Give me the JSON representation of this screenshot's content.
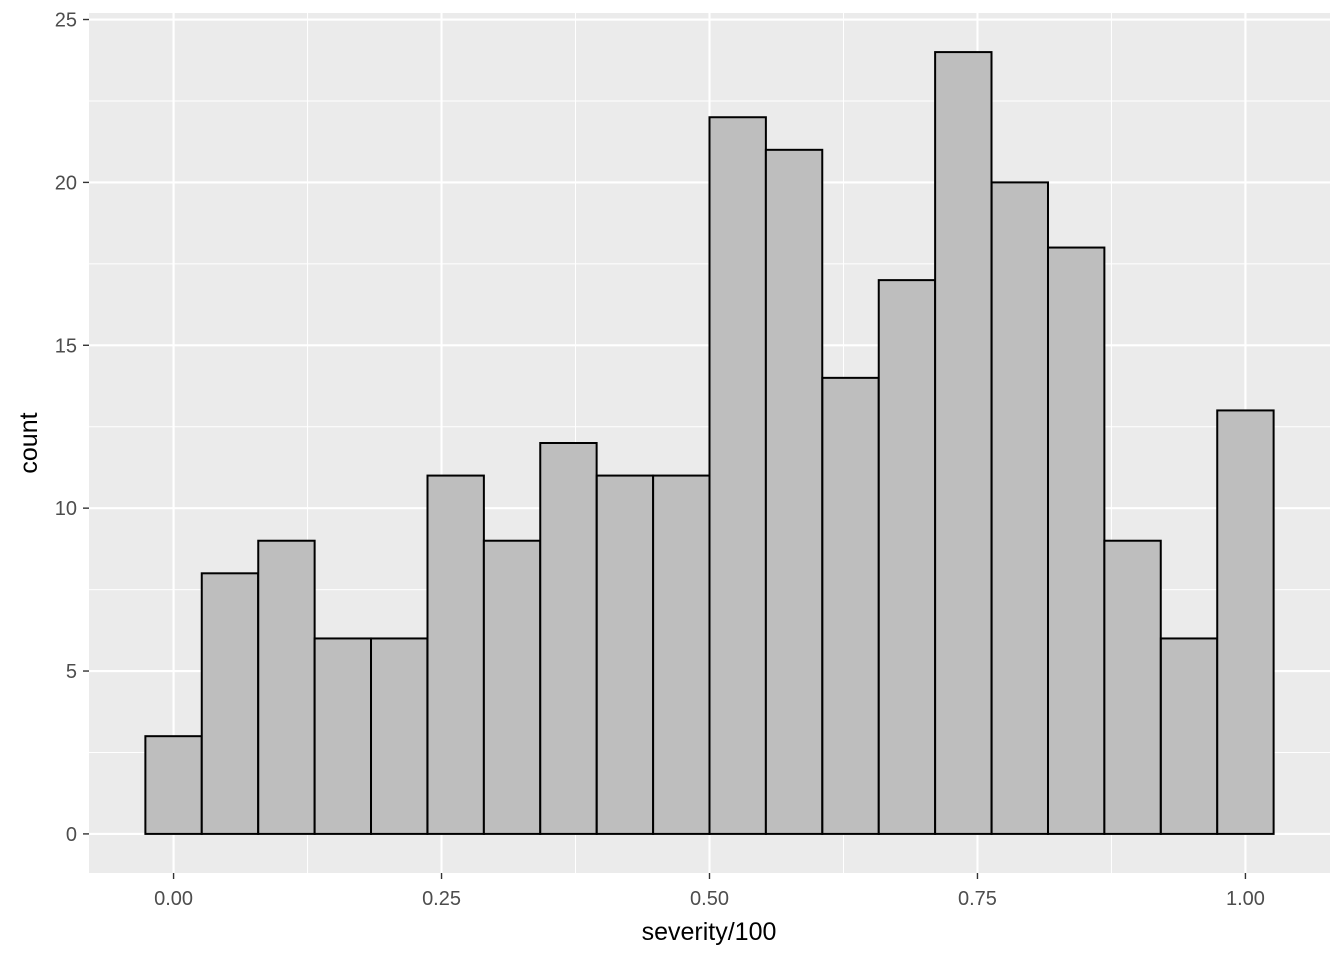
{
  "chart_data": {
    "type": "bar",
    "subtype": "histogram",
    "title": "",
    "xlabel": "severity/100",
    "ylabel": "count",
    "bin_width": 0.0526,
    "bin_centers": [
      0.0,
      0.0526,
      0.1053,
      0.1579,
      0.2105,
      0.2632,
      0.3158,
      0.3684,
      0.4211,
      0.4737,
      0.5263,
      0.5789,
      0.6316,
      0.6842,
      0.7368,
      0.7895,
      0.8421,
      0.8947,
      0.9474,
      1.0
    ],
    "values": [
      3,
      8,
      9,
      6,
      6,
      11,
      9,
      12,
      11,
      11,
      22,
      21,
      14,
      17,
      24,
      20,
      18,
      9,
      6,
      13
    ],
    "xlim": [
      -0.0789,
      1.0789
    ],
    "ylim": [
      -1.2,
      25.2
    ],
    "x_ticks": [
      0,
      0.25,
      0.5,
      0.75,
      1.0
    ],
    "x_tick_labels": [
      "0.00",
      "0.25",
      "0.50",
      "0.75",
      "1.00"
    ],
    "y_ticks": [
      0,
      5,
      10,
      15,
      20,
      25
    ],
    "y_tick_labels": [
      "0",
      "5",
      "10",
      "15",
      "20",
      "25"
    ],
    "grid": true,
    "legend": "none",
    "colors": {
      "panel": "#EBEBEB",
      "grid": "#FFFFFF",
      "bar_fill": "#BEBEBE",
      "bar_stroke": "#000000",
      "tick_label": "#4D4D4D"
    }
  }
}
